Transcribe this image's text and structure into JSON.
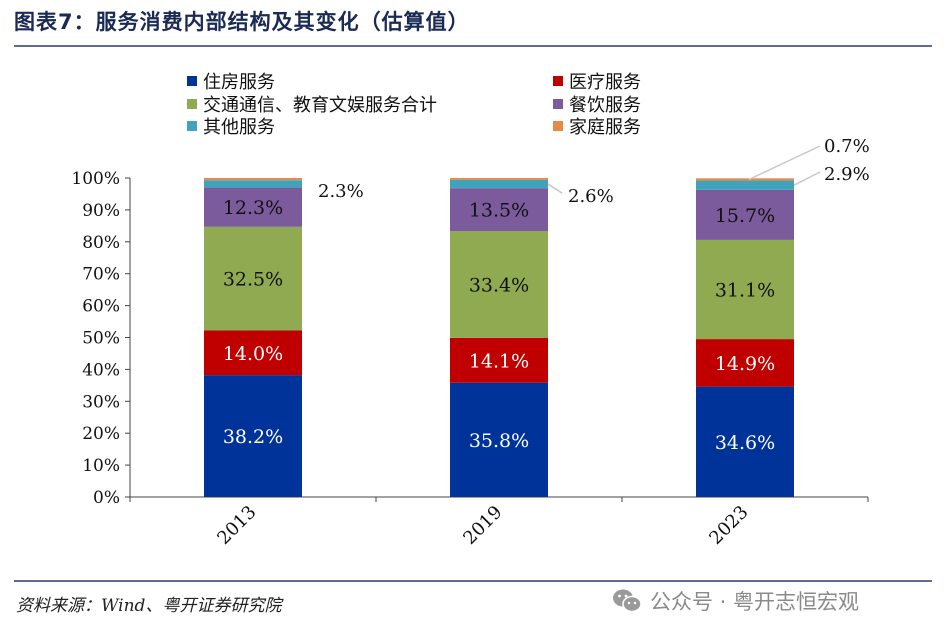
{
  "figure_title": "图表7：服务消费内部结构及其变化（估算值）",
  "source": "资料来源：Wind、粤开证券研究院",
  "watermark": "公众号 · 粤开志恒宏观",
  "watermark_icon": "wechat-icon",
  "chart_data": {
    "type": "bar",
    "stacked": true,
    "categories": [
      "2013",
      "2019",
      "2023"
    ],
    "ylim": [
      0,
      100
    ],
    "yticks": [
      "0%",
      "10%",
      "20%",
      "30%",
      "40%",
      "50%",
      "60%",
      "70%",
      "80%",
      "90%",
      "100%"
    ],
    "legend_position": "top",
    "series": [
      {
        "name": "住房服务",
        "color": "#003399",
        "values": [
          38.2,
          35.8,
          34.6
        ],
        "labels": [
          "38.2%",
          "35.8%",
          "34.6%"
        ],
        "label_color": "#ffffff"
      },
      {
        "name": "医疗服务",
        "color": "#c00000",
        "values": [
          14.0,
          14.1,
          14.9
        ],
        "labels": [
          "14.0%",
          "14.1%",
          "14.9%"
        ],
        "label_color": "#ffffff"
      },
      {
        "name": "交通通信、教育文娱服务合计",
        "color": "#8faa51",
        "values": [
          32.5,
          33.4,
          31.1
        ],
        "labels": [
          "32.5%",
          "33.4%",
          "31.1%"
        ],
        "label_color": "#111111"
      },
      {
        "name": "餐饮服务",
        "color": "#7b5b9c",
        "values": [
          12.3,
          13.5,
          15.7
        ],
        "labels": [
          "12.3%",
          "13.5%",
          "15.7%"
        ],
        "label_color": "#111111"
      },
      {
        "name": "其他服务",
        "color": "#3fa3bd",
        "values": [
          2.3,
          2.6,
          2.9
        ],
        "labels": [
          "2.3%",
          "2.6%",
          "2.9%"
        ],
        "label_color": "#111111"
      },
      {
        "name": "家庭服务",
        "color": "#e58a48",
        "values": [
          0.7,
          0.6,
          0.7
        ],
        "labels": [
          "",
          "",
          "0.7%"
        ],
        "label_color": "#111111"
      }
    ]
  }
}
